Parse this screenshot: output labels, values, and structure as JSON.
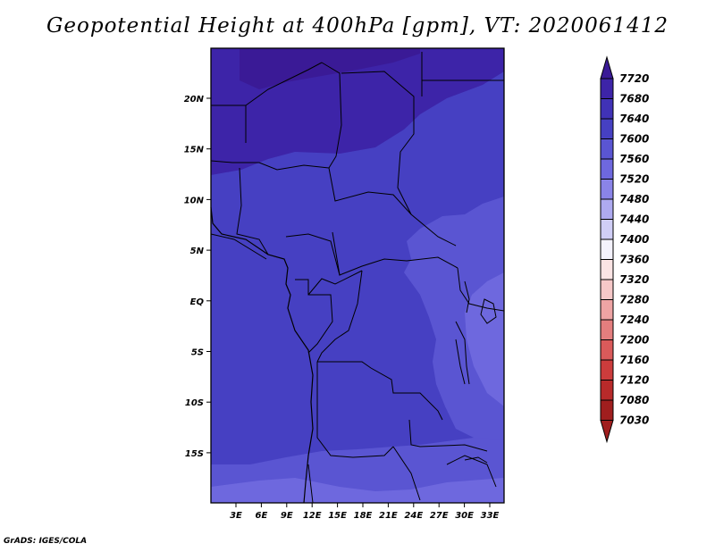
{
  "title": "Geopotential Height at 400hPa [gpm], VT: 2020061412",
  "credit": "GrADS: IGES/COLA",
  "map": {
    "lat_labels": [
      "20N",
      "15N",
      "10N",
      "5N",
      "EQ",
      "5S",
      "10S",
      "15S"
    ],
    "lon_labels": [
      "3E",
      "6E",
      "9E",
      "12E",
      "15E",
      "18E",
      "21E",
      "24E",
      "27E",
      "30E",
      "33E"
    ]
  },
  "colorbar": {
    "levels": [
      "7720",
      "7680",
      "7640",
      "7600",
      "7560",
      "7520",
      "7480",
      "7440",
      "7400",
      "7360",
      "7320",
      "7280",
      "7240",
      "7200",
      "7160",
      "7120",
      "7080",
      "7030"
    ],
    "colors": [
      "#3a1a96",
      "#3d24a8",
      "#4032b6",
      "#4640c2",
      "#5a55d2",
      "#6e68de",
      "#8a84e8",
      "#aeaaf0",
      "#d0cef6",
      "#f4f2fc",
      "#fbe4e4",
      "#f6c8c8",
      "#eea4a4",
      "#e47e7e",
      "#da5a5a",
      "#cc3c3c",
      "#b82a2a",
      "#a01e1e"
    ]
  },
  "colors": {
    "field_base": "#4640c2",
    "field_high": "#3d24a8",
    "field_highest": "#3a1a96",
    "field_mid": "#5a55d2",
    "field_low": "#6e68de"
  }
}
